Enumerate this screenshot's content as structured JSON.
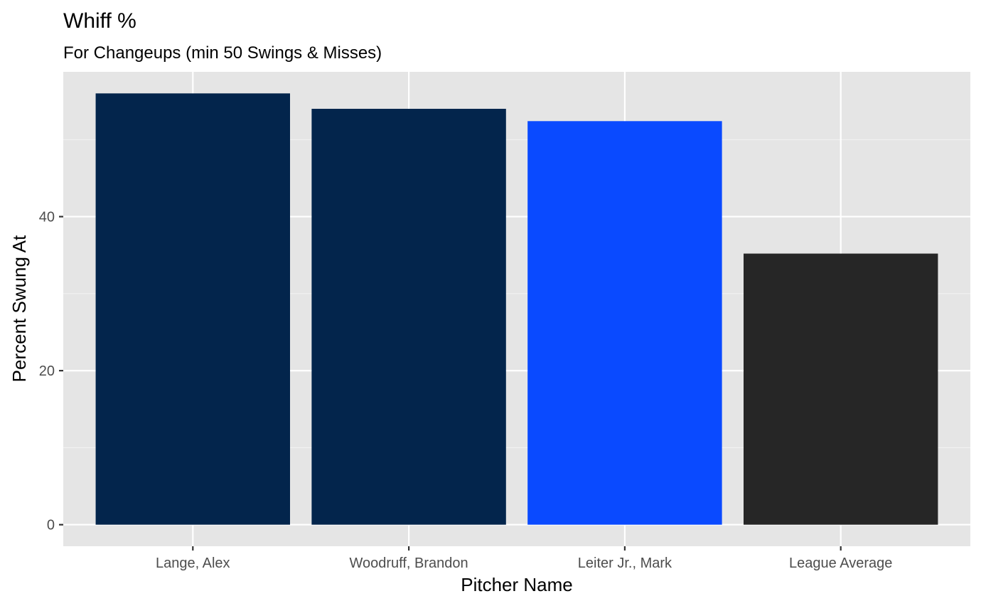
{
  "chart_data": {
    "type": "bar",
    "title": "Whiff %",
    "subtitle": "For Changeups (min 50 Swings & Misses)",
    "xlabel": "Pitcher Name",
    "ylabel": "Percent Swung At",
    "categories": [
      "Lange, Alex",
      "Woodruff, Brandon",
      "Leiter Jr., Mark",
      "League Average"
    ],
    "values": [
      56.0,
      54.0,
      52.4,
      35.2
    ],
    "colors": [
      "#03254c",
      "#03254c",
      "#0a4aff",
      "#262626"
    ],
    "ylim": [
      -2.8,
      58.8
    ],
    "yticks": [
      0,
      20,
      40
    ],
    "grid": true,
    "panel_background": "#e5e5e5",
    "legend": "none"
  }
}
